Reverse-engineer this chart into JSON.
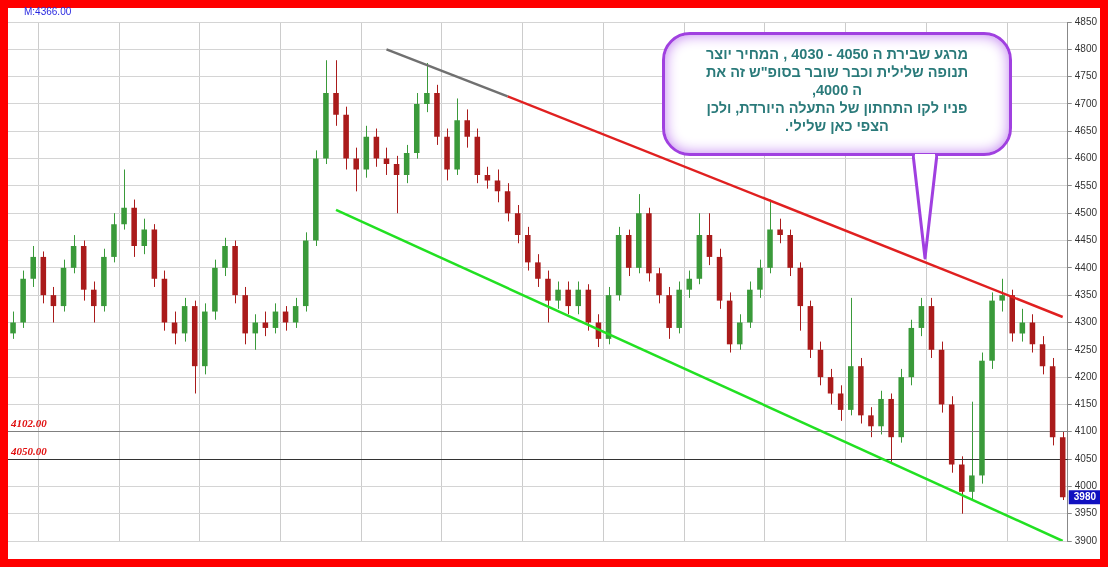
{
  "chart_data": {
    "type": "candlestick",
    "categories": [
      null,
      null,
      null,
      null,
      null,
      null,
      null,
      null,
      null,
      null,
      null,
      null,
      null,
      null,
      null,
      null,
      null,
      null,
      null,
      null,
      null,
      null,
      null,
      null,
      null,
      null,
      null,
      null,
      null,
      null,
      null,
      null,
      null,
      null,
      null,
      null,
      null,
      null,
      null,
      null,
      null,
      null,
      null,
      null,
      null,
      null,
      null,
      null,
      null,
      null,
      null,
      null,
      null,
      null,
      null,
      null,
      null,
      null,
      null,
      null,
      null,
      null,
      null,
      null,
      null,
      null,
      null,
      null,
      null,
      null,
      null,
      null,
      null,
      null,
      null,
      null,
      null,
      null,
      null,
      null,
      null,
      null,
      null,
      null,
      null,
      null,
      null,
      null,
      null,
      null,
      null,
      null,
      null,
      null,
      null,
      null,
      null,
      null,
      null,
      null,
      null,
      null,
      null,
      null,
      null
    ],
    "ohlc": [
      [
        4280,
        4320,
        4270,
        4300
      ],
      [
        4300,
        4395,
        4290,
        4380
      ],
      [
        4380,
        4440,
        4365,
        4420
      ],
      [
        4420,
        4430,
        4335,
        4350
      ],
      [
        4350,
        4365,
        4300,
        4330
      ],
      [
        4330,
        4415,
        4320,
        4400
      ],
      [
        4400,
        4460,
        4390,
        4440
      ],
      [
        4440,
        4450,
        4340,
        4360
      ],
      [
        4360,
        4375,
        4300,
        4330
      ],
      [
        4330,
        4435,
        4320,
        4420
      ],
      [
        4420,
        4500,
        4410,
        4480
      ],
      [
        4480,
        4580,
        4470,
        4510
      ],
      [
        4510,
        4525,
        4420,
        4440
      ],
      [
        4440,
        4490,
        4425,
        4470
      ],
      [
        4470,
        4480,
        4365,
        4380
      ],
      [
        4380,
        4395,
        4285,
        4300
      ],
      [
        4300,
        4320,
        4260,
        4280
      ],
      [
        4280,
        4345,
        4265,
        4330
      ],
      [
        4330,
        4340,
        4170,
        4220
      ],
      [
        4220,
        4335,
        4205,
        4320
      ],
      [
        4320,
        4415,
        4305,
        4400
      ],
      [
        4400,
        4455,
        4385,
        4440
      ],
      [
        4440,
        4450,
        4335,
        4350
      ],
      [
        4350,
        4365,
        4260,
        4280
      ],
      [
        4280,
        4315,
        4250,
        4300
      ],
      [
        4300,
        4320,
        4275,
        4290
      ],
      [
        4290,
        4335,
        4280,
        4320
      ],
      [
        4320,
        4330,
        4285,
        4300
      ],
      [
        4300,
        4345,
        4290,
        4330
      ],
      [
        4330,
        4465,
        4320,
        4450
      ],
      [
        4450,
        4615,
        4440,
        4600
      ],
      [
        4600,
        4780,
        4590,
        4720
      ],
      [
        4720,
        4780,
        4660,
        4680
      ],
      [
        4680,
        4695,
        4580,
        4600
      ],
      [
        4600,
        4620,
        4540,
        4580
      ],
      [
        4580,
        4660,
        4565,
        4640
      ],
      [
        4640,
        4655,
        4585,
        4600
      ],
      [
        4600,
        4620,
        4570,
        4590
      ],
      [
        4590,
        4605,
        4500,
        4570
      ],
      [
        4570,
        4625,
        4555,
        4610
      ],
      [
        4610,
        4720,
        4600,
        4700
      ],
      [
        4700,
        4775,
        4685,
        4720
      ],
      [
        4720,
        4735,
        4625,
        4640
      ],
      [
        4640,
        4655,
        4560,
        4580
      ],
      [
        4580,
        4710,
        4570,
        4670
      ],
      [
        4670,
        4690,
        4620,
        4640
      ],
      [
        4640,
        4655,
        4555,
        4570
      ],
      [
        4570,
        4585,
        4545,
        4560
      ],
      [
        4560,
        4580,
        4520,
        4540
      ],
      [
        4540,
        4555,
        4485,
        4500
      ],
      [
        4500,
        4515,
        4445,
        4460
      ],
      [
        4460,
        4475,
        4395,
        4410
      ],
      [
        4410,
        4425,
        4365,
        4380
      ],
      [
        4380,
        4395,
        4300,
        4340
      ],
      [
        4340,
        4375,
        4325,
        4360
      ],
      [
        4360,
        4375,
        4315,
        4330
      ],
      [
        4330,
        4375,
        4315,
        4360
      ],
      [
        4360,
        4370,
        4285,
        4300
      ],
      [
        4300,
        4315,
        4255,
        4270
      ],
      [
        4270,
        4365,
        4260,
        4350
      ],
      [
        4350,
        4475,
        4340,
        4460
      ],
      [
        4460,
        4470,
        4385,
        4400
      ],
      [
        4400,
        4535,
        4390,
        4500
      ],
      [
        4500,
        4510,
        4375,
        4390
      ],
      [
        4390,
        4400,
        4335,
        4350
      ],
      [
        4350,
        4365,
        4270,
        4290
      ],
      [
        4290,
        4375,
        4280,
        4360
      ],
      [
        4360,
        4395,
        4345,
        4380
      ],
      [
        4380,
        4500,
        4370,
        4460
      ],
      [
        4460,
        4500,
        4405,
        4420
      ],
      [
        4420,
        4435,
        4325,
        4340
      ],
      [
        4340,
        4355,
        4245,
        4260
      ],
      [
        4260,
        4315,
        4250,
        4300
      ],
      [
        4300,
        4375,
        4290,
        4360
      ],
      [
        4360,
        4415,
        4345,
        4400
      ],
      [
        4400,
        4525,
        4390,
        4470
      ],
      [
        4470,
        4490,
        4445,
        4460
      ],
      [
        4460,
        4470,
        4385,
        4400
      ],
      [
        4400,
        4410,
        4285,
        4330
      ],
      [
        4330,
        4340,
        4235,
        4250
      ],
      [
        4250,
        4265,
        4185,
        4200
      ],
      [
        4200,
        4215,
        4150,
        4170
      ],
      [
        4170,
        4185,
        4120,
        4140
      ],
      [
        4140,
        4345,
        4130,
        4220
      ],
      [
        4220,
        4235,
        4115,
        4130
      ],
      [
        4130,
        4145,
        4090,
        4110
      ],
      [
        4110,
        4175,
        4095,
        4160
      ],
      [
        4160,
        4170,
        4045,
        4090
      ],
      [
        4090,
        4215,
        4080,
        4200
      ],
      [
        4200,
        4305,
        4185,
        4290
      ],
      [
        4290,
        4345,
        4275,
        4330
      ],
      [
        4330,
        4345,
        4235,
        4250
      ],
      [
        4250,
        4265,
        4135,
        4150
      ],
      [
        4150,
        4165,
        4025,
        4040
      ],
      [
        4040,
        4055,
        3950,
        3990
      ],
      [
        3990,
        4155,
        3975,
        4020
      ],
      [
        4020,
        4245,
        4005,
        4230
      ],
      [
        4230,
        4355,
        4215,
        4340
      ],
      [
        4340,
        4380,
        4320,
        4350
      ],
      [
        4350,
        4360,
        4265,
        4280
      ],
      [
        4280,
        4325,
        4265,
        4300
      ],
      [
        4300,
        4315,
        4245,
        4260
      ],
      [
        4260,
        4275,
        4205,
        4220
      ],
      [
        4220,
        4235,
        4075,
        4090
      ],
      [
        4090,
        4100,
        3975,
        3980
      ]
    ],
    "colors": [
      "#3a9a3a",
      "#3a9a3a",
      "#3a9a3a",
      "#aa1b1b",
      "#aa1b1b",
      "#3a9a3a",
      "#3a9a3a",
      "#aa1b1b",
      "#aa1b1b",
      "#3a9a3a",
      "#3a9a3a",
      "#3a9a3a",
      "#aa1b1b",
      "#3a9a3a",
      "#aa1b1b",
      "#aa1b1b",
      "#aa1b1b",
      "#3a9a3a",
      "#aa1b1b",
      "#3a9a3a",
      "#3a9a3a",
      "#3a9a3a",
      "#aa1b1b",
      "#aa1b1b",
      "#3a9a3a",
      "#aa1b1b",
      "#3a9a3a",
      "#aa1b1b",
      "#3a9a3a",
      "#3a9a3a",
      "#3a9a3a",
      "#3a9a3a",
      "#aa1b1b",
      "#aa1b1b",
      "#aa1b1b",
      "#3a9a3a",
      "#aa1b1b",
      "#aa1b1b",
      "#aa1b1b",
      "#3a9a3a",
      "#3a9a3a",
      "#3a9a3a",
      "#aa1b1b",
      "#aa1b1b",
      "#3a9a3a",
      "#aa1b1b",
      "#aa1b1b",
      "#aa1b1b",
      "#aa1b1b",
      "#aa1b1b",
      "#aa1b1b",
      "#aa1b1b",
      "#aa1b1b",
      "#aa1b1b",
      "#3a9a3a",
      "#aa1b1b",
      "#3a9a3a",
      "#aa1b1b",
      "#aa1b1b",
      "#3a9a3a",
      "#3a9a3a",
      "#aa1b1b",
      "#3a9a3a",
      "#aa1b1b",
      "#aa1b1b",
      "#aa1b1b",
      "#3a9a3a",
      "#3a9a3a",
      "#3a9a3a",
      "#aa1b1b",
      "#aa1b1b",
      "#aa1b1b",
      "#3a9a3a",
      "#3a9a3a",
      "#3a9a3a",
      "#3a9a3a",
      "#aa1b1b",
      "#aa1b1b",
      "#aa1b1b",
      "#aa1b1b",
      "#aa1b1b",
      "#aa1b1b",
      "#aa1b1b",
      "#3a9a3a",
      "#aa1b1b",
      "#aa1b1b",
      "#3a9a3a",
      "#aa1b1b",
      "#3a9a3a",
      "#3a9a3a",
      "#3a9a3a",
      "#aa1b1b",
      "#aa1b1b",
      "#aa1b1b",
      "#aa1b1b",
      "#3a9a3a",
      "#3a9a3a",
      "#3a9a3a",
      "#3a9a3a",
      "#aa1b1b",
      "#3a9a3a",
      "#aa1b1b",
      "#aa1b1b",
      "#aa1b1b",
      "#aa1b1b"
    ],
    "series": [
      {
        "type": "line",
        "color": "#707070",
        "values": [
          null,
          null,
          null,
          null,
          null,
          null,
          null,
          null,
          null,
          null,
          null,
          null,
          null,
          null,
          null,
          null,
          null,
          null,
          null,
          null,
          null,
          null,
          null,
          null,
          null,
          null,
          null,
          null,
          null,
          null,
          null,
          null,
          null,
          null,
          null,
          null,
          null,
          4800,
          null,
          null,
          null,
          null,
          null,
          null,
          null,
          null,
          null,
          null,
          null,
          4714,
          null,
          null,
          null,
          null,
          null,
          null,
          null,
          null,
          null,
          null,
          null,
          null,
          null,
          null,
          null,
          null,
          null,
          null,
          null,
          null,
          null,
          null,
          null,
          null,
          null,
          null,
          null,
          null,
          null,
          null,
          null,
          null,
          null,
          null,
          null,
          null,
          null,
          null,
          null,
          null,
          null,
          null,
          null,
          null,
          null,
          null,
          null,
          null,
          null,
          null,
          null,
          null,
          null,
          null,
          null
        ]
      },
      {
        "type": "line",
        "color": "#e02020",
        "values": [
          null,
          null,
          null,
          null,
          null,
          null,
          null,
          null,
          null,
          null,
          null,
          null,
          null,
          null,
          null,
          null,
          null,
          null,
          null,
          null,
          null,
          null,
          null,
          null,
          null,
          null,
          null,
          null,
          null,
          null,
          null,
          null,
          null,
          null,
          null,
          null,
          null,
          null,
          null,
          null,
          null,
          null,
          null,
          null,
          null,
          null,
          null,
          null,
          null,
          4714,
          null,
          null,
          null,
          null,
          null,
          null,
          null,
          null,
          null,
          null,
          null,
          null,
          null,
          null,
          null,
          null,
          null,
          null,
          null,
          null,
          null,
          null,
          null,
          null,
          null,
          null,
          null,
          null,
          null,
          null,
          null,
          null,
          null,
          null,
          null,
          null,
          null,
          null,
          null,
          null,
          null,
          null,
          null,
          null,
          null,
          null,
          null,
          null,
          null,
          null,
          null,
          null,
          null,
          null,
          4310
        ]
      },
      {
        "type": "line",
        "color": "#22e022",
        "values": [
          null,
          null,
          null,
          null,
          null,
          null,
          null,
          null,
          null,
          null,
          null,
          null,
          null,
          null,
          null,
          null,
          null,
          null,
          null,
          null,
          null,
          null,
          null,
          null,
          null,
          null,
          null,
          null,
          null,
          null,
          null,
          null,
          4506,
          null,
          null,
          null,
          null,
          null,
          null,
          null,
          null,
          null,
          null,
          null,
          null,
          null,
          null,
          null,
          null,
          null,
          null,
          null,
          null,
          null,
          null,
          null,
          null,
          null,
          null,
          null,
          null,
          null,
          null,
          null,
          null,
          null,
          null,
          null,
          null,
          null,
          null,
          null,
          null,
          null,
          null,
          null,
          null,
          null,
          null,
          null,
          null,
          null,
          null,
          null,
          null,
          null,
          null,
          null,
          null,
          null,
          null,
          null,
          null,
          null,
          null,
          null,
          null,
          null,
          null,
          null,
          null,
          null,
          null,
          null,
          3900
        ]
      }
    ],
    "ylim": [
      3900,
      4850
    ],
    "yticks": [
      3900,
      3950,
      4000,
      4050,
      4100,
      4150,
      4200,
      4250,
      4300,
      4350,
      4400,
      4450,
      4500,
      4550,
      4600,
      4650,
      4700,
      4750,
      4800,
      4850
    ],
    "grid": true,
    "ref_lines": [
      {
        "axis": "y",
        "value": 4102,
        "label": "4102.00",
        "color": "#808080"
      },
      {
        "axis": "y",
        "value": 4050,
        "label": "4050.00",
        "color": "#333333"
      }
    ],
    "annotations": [
      "M:4366.00",
      "מרגע שבירת ה 4050 - 4030 , המחיר יוצר\nתנופה שלילית וכבר שובר בסופ\"ש זה את\nה 4000,\nפניו לקו התחתון של התעלה היורדת, ולכן\nהצפי כאן שלילי.",
      {
        "text": "3980",
        "y": 3980
      }
    ]
  }
}
